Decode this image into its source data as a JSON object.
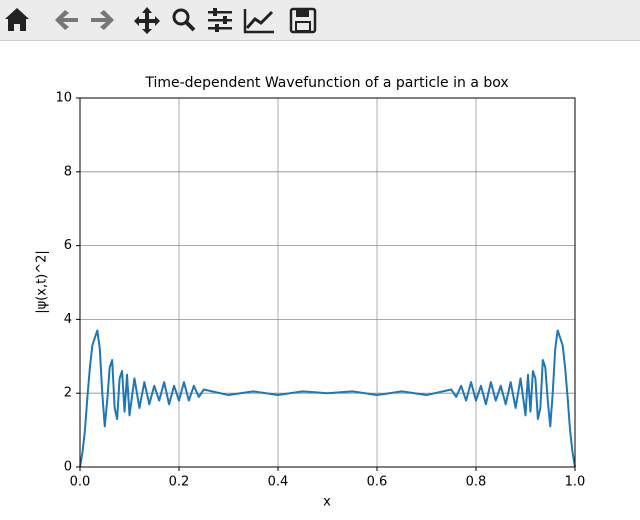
{
  "chart_data": {
    "type": "line",
    "title": "Time-dependent Wavefunction of a particle in a box",
    "x_label": "x",
    "y_label": "|ψ(x,t)^2|",
    "x": [
      0,
      0.005,
      0.01,
      0.015,
      0.02,
      0.025,
      0.03,
      0.035,
      0.04,
      0.045,
      0.05,
      0.055,
      0.06,
      0.065,
      0.07,
      0.075,
      0.08,
      0.085,
      0.09,
      0.095,
      0.1,
      0.11,
      0.12,
      0.13,
      0.14,
      0.15,
      0.16,
      0.17,
      0.18,
      0.19,
      0.2,
      0.21,
      0.22,
      0.23,
      0.24,
      0.25,
      0.3,
      0.35,
      0.4,
      0.45,
      0.5,
      0.55,
      0.6,
      0.65,
      0.7,
      0.75,
      0.76,
      0.77,
      0.78,
      0.79,
      0.8,
      0.81,
      0.82,
      0.83,
      0.84,
      0.85,
      0.86,
      0.87,
      0.88,
      0.89,
      0.9,
      0.905,
      0.91,
      0.915,
      0.92,
      0.925,
      0.93,
      0.935,
      0.94,
      0.945,
      0.95,
      0.955,
      0.96,
      0.965,
      0.97,
      0.975,
      0.98,
      0.985,
      0.99,
      0.995,
      1.0
    ],
    "series": [
      {
        "color": "#1f77b4",
        "values": [
          0,
          0.4,
          1.0,
          1.9,
          2.7,
          3.3,
          3.5,
          3.7,
          3.2,
          2.0,
          1.1,
          1.8,
          2.7,
          2.9,
          1.6,
          1.3,
          2.4,
          2.6,
          1.5,
          2.5,
          1.4,
          2.4,
          1.6,
          2.3,
          1.7,
          2.2,
          1.8,
          2.3,
          1.7,
          2.2,
          1.8,
          2.3,
          1.8,
          2.2,
          1.9,
          2.1,
          1.95,
          2.05,
          1.95,
          2.05,
          2.0,
          2.05,
          1.95,
          2.05,
          1.95,
          2.1,
          1.9,
          2.2,
          1.8,
          2.3,
          1.8,
          2.2,
          1.7,
          2.3,
          1.8,
          2.2,
          1.7,
          2.3,
          1.6,
          2.4,
          1.4,
          2.5,
          1.5,
          2.6,
          2.4,
          1.3,
          1.6,
          2.9,
          2.7,
          1.8,
          1.1,
          2.0,
          3.2,
          3.7,
          3.5,
          3.3,
          2.7,
          1.9,
          1.0,
          0.4,
          0
        ]
      }
    ],
    "xlim": [
      0,
      1
    ],
    "ylim": [
      0,
      10
    ],
    "xticks": [
      {
        "value": 0,
        "label": "0.0"
      },
      {
        "value": 0.2,
        "label": "0.2"
      },
      {
        "value": 0.4,
        "label": "0.4"
      },
      {
        "value": 0.6,
        "label": "0.6"
      },
      {
        "value": 0.8,
        "label": "0.8"
      },
      {
        "value": 1,
        "label": "1.0"
      }
    ],
    "yticks": [
      0,
      2,
      4,
      6,
      8,
      10
    ],
    "grid": true
  }
}
